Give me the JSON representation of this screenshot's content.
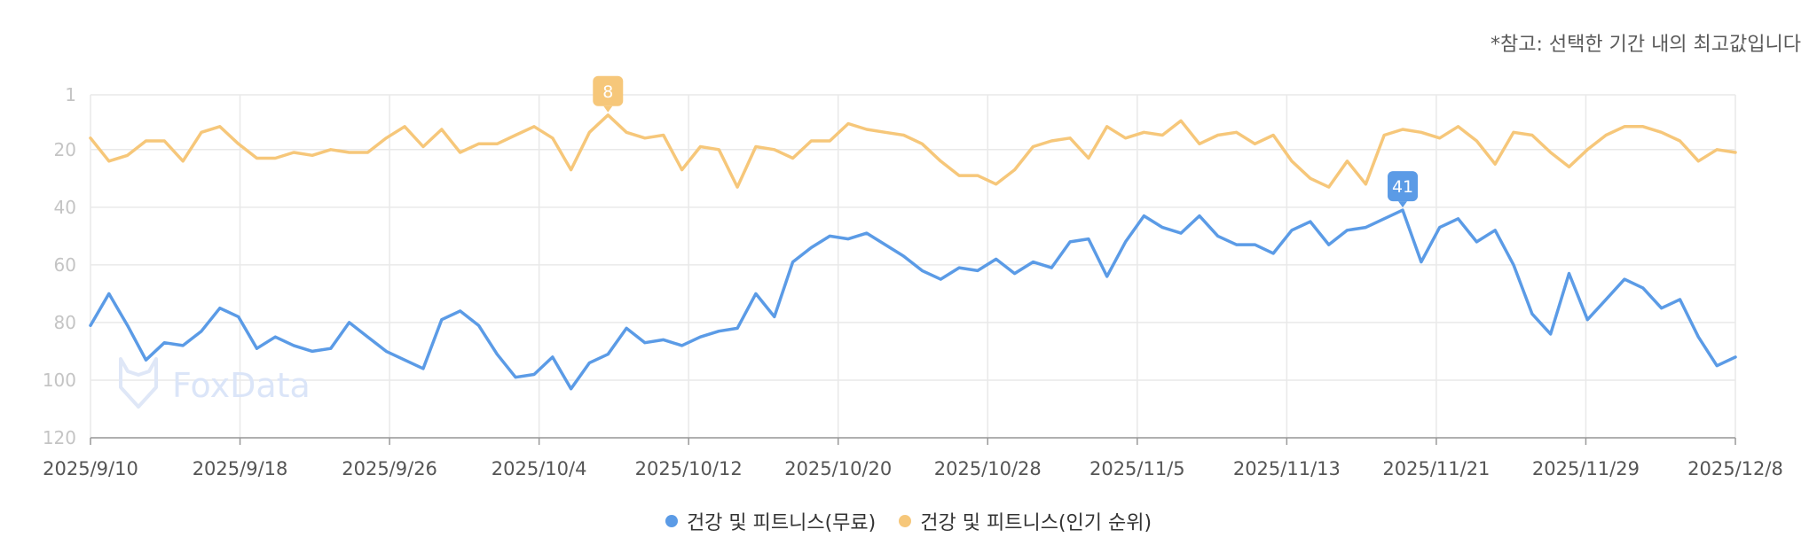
{
  "note": "*참고: 선택한 기간 내의 최고값입니다",
  "watermark": "FoxData",
  "chart_data": {
    "type": "line",
    "y_axis": {
      "inverted": true,
      "min": 1,
      "max": 120,
      "ticks": [
        1,
        20,
        40,
        60,
        80,
        100,
        120
      ]
    },
    "x_tick_labels": [
      "2025/9/10",
      "2025/9/18",
      "2025/9/26",
      "2025/10/4",
      "2025/10/12",
      "2025/10/20",
      "2025/10/28",
      "2025/11/5",
      "2025/11/13",
      "2025/11/21",
      "2025/11/29",
      "2025/12/8"
    ],
    "grid": true,
    "legend_position": "bottom-center",
    "series": [
      {
        "name": "건강 및 피트니스(무료)",
        "color": "#5b9be6",
        "values": [
          81,
          70,
          81,
          93,
          87,
          88,
          83,
          75,
          78,
          89,
          85,
          88,
          90,
          89,
          80,
          85,
          90,
          93,
          96,
          79,
          76,
          81,
          91,
          99,
          98,
          92,
          103,
          94,
          91,
          82,
          87,
          86,
          88,
          85,
          83,
          82,
          70,
          78,
          59,
          54,
          50,
          51,
          49,
          53,
          57,
          62,
          65,
          61,
          62,
          58,
          63,
          59,
          61,
          52,
          51,
          64,
          52,
          43,
          47,
          49,
          43,
          50,
          53,
          53,
          56,
          48,
          45,
          53,
          48,
          47,
          44,
          41,
          59,
          47,
          44,
          52,
          48,
          60,
          77,
          84,
          63,
          79,
          72,
          65,
          68,
          75,
          72,
          85,
          95,
          92
        ],
        "marker": {
          "index": 71,
          "label": "41"
        }
      },
      {
        "name": "건강 및 피트니스(인기 순위)",
        "color": "#f6c77a",
        "values": [
          16,
          24,
          22,
          17,
          17,
          24,
          14,
          12,
          18,
          23,
          23,
          21,
          22,
          20,
          21,
          21,
          16,
          12,
          19,
          13,
          21,
          18,
          18,
          15,
          12,
          16,
          27,
          14,
          8,
          14,
          16,
          15,
          27,
          19,
          20,
          33,
          19,
          20,
          23,
          17,
          17,
          11,
          13,
          14,
          15,
          18,
          24,
          29,
          29,
          32,
          27,
          19,
          17,
          16,
          23,
          12,
          16,
          14,
          15,
          10,
          18,
          15,
          14,
          18,
          15,
          24,
          30,
          33,
          24,
          32,
          15,
          13,
          14,
          16,
          12,
          17,
          25,
          14,
          15,
          21,
          26,
          20,
          15,
          12,
          12,
          14,
          17,
          24,
          20,
          21
        ],
        "marker": {
          "index": 28,
          "label": "8"
        }
      }
    ]
  }
}
